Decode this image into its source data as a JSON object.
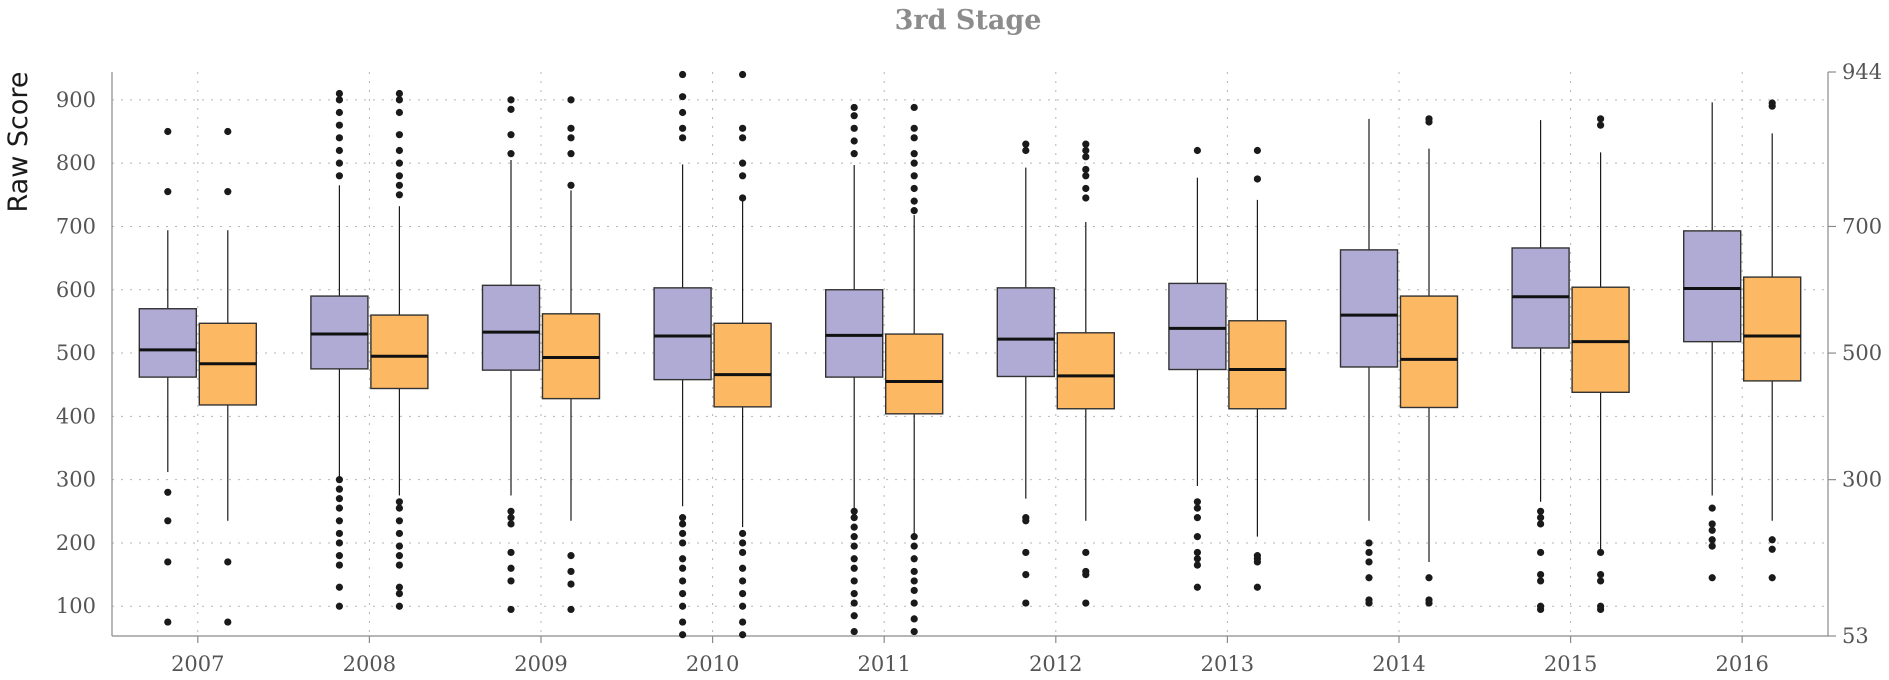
{
  "chart_data": {
    "type": "box",
    "title": "3rd Stage",
    "ylabel": "Raw Score",
    "ylim": [
      53,
      944
    ],
    "yticks": [
      100,
      200,
      300,
      400,
      500,
      600,
      700,
      800,
      900
    ],
    "right_axis_ticks": [
      {
        "value": 53,
        "label": "53"
      },
      {
        "value": 300,
        "label": "300"
      },
      {
        "value": 500,
        "label": "500"
      },
      {
        "value": 700,
        "label": "700"
      },
      {
        "value": 944,
        "label": "944"
      }
    ],
    "grid": true,
    "categories": [
      "2007",
      "2008",
      "2009",
      "2010",
      "2011",
      "2012",
      "2013",
      "2014",
      "2015",
      "2016"
    ],
    "series": [
      {
        "color": "#b0abd4",
        "boxes": [
          {
            "q1": 462,
            "median": 505,
            "q3": 570,
            "whisker_low": 312,
            "whisker_high": 694,
            "outliers": [
              75,
              170,
              235,
              280,
              755,
              850
            ]
          },
          {
            "q1": 475,
            "median": 530,
            "q3": 590,
            "whisker_low": 305,
            "whisker_high": 765,
            "outliers": [
              100,
              130,
              165,
              180,
              200,
              215,
              235,
              255,
              270,
              285,
              300,
              780,
              800,
              820,
              840,
              860,
              880,
              900,
              910
            ]
          },
          {
            "q1": 473,
            "median": 533,
            "q3": 607,
            "whisker_low": 275,
            "whisker_high": 805,
            "outliers": [
              95,
              140,
              160,
              185,
              230,
              240,
              250,
              815,
              845,
              885,
              900
            ]
          },
          {
            "q1": 458,
            "median": 527,
            "q3": 603,
            "whisker_low": 258,
            "whisker_high": 798,
            "outliers": [
              55,
              75,
              100,
              120,
              140,
              160,
              175,
              200,
              215,
              230,
              240,
              840,
              855,
              880,
              905,
              940
            ]
          },
          {
            "q1": 462,
            "median": 528,
            "q3": 600,
            "whisker_low": 255,
            "whisker_high": 797,
            "outliers": [
              60,
              85,
              105,
              120,
              140,
              160,
              175,
              195,
              210,
              225,
              240,
              250,
              815,
              835,
              855,
              875,
              888
            ]
          },
          {
            "q1": 463,
            "median": 522,
            "q3": 603,
            "whisker_low": 270,
            "whisker_high": 793,
            "outliers": [
              105,
              150,
              185,
              235,
              240,
              820,
              830
            ]
          },
          {
            "q1": 474,
            "median": 539,
            "q3": 610,
            "whisker_low": 290,
            "whisker_high": 777,
            "outliers": [
              130,
              165,
              175,
              185,
              210,
              240,
              255,
              265,
              820
            ]
          },
          {
            "q1": 478,
            "median": 560,
            "q3": 663,
            "whisker_low": 235,
            "whisker_high": 870,
            "outliers": [
              105,
              110,
              145,
              170,
              185,
              200
            ]
          },
          {
            "q1": 508,
            "median": 589,
            "q3": 666,
            "whisker_low": 265,
            "whisker_high": 868,
            "outliers": [
              95,
              100,
              140,
              150,
              185,
              230,
              240,
              250
            ]
          },
          {
            "q1": 518,
            "median": 602,
            "q3": 693,
            "whisker_low": 275,
            "whisker_high": 896,
            "outliers": [
              145,
              195,
              205,
              220,
              230,
              255
            ]
          }
        ]
      },
      {
        "color": "#fcb862",
        "boxes": [
          {
            "q1": 418,
            "median": 483,
            "q3": 547,
            "whisker_low": 235,
            "whisker_high": 694,
            "outliers": [
              75,
              170,
              755,
              850
            ]
          },
          {
            "q1": 444,
            "median": 495,
            "q3": 560,
            "whisker_low": 275,
            "whisker_high": 732,
            "outliers": [
              100,
              120,
              130,
              165,
              180,
              195,
              215,
              235,
              255,
              265,
              750,
              765,
              780,
              800,
              820,
              845,
              880,
              900,
              910
            ]
          },
          {
            "q1": 428,
            "median": 493,
            "q3": 562,
            "whisker_low": 235,
            "whisker_high": 757,
            "outliers": [
              95,
              135,
              155,
              180,
              765,
              815,
              840,
              855,
              900
            ]
          },
          {
            "q1": 415,
            "median": 466,
            "q3": 547,
            "whisker_low": 225,
            "whisker_high": 742,
            "outliers": [
              55,
              75,
              100,
              120,
              140,
              160,
              185,
              200,
              215,
              745,
              780,
              800,
              840,
              855,
              940
            ]
          },
          {
            "q1": 404,
            "median": 455,
            "q3": 530,
            "whisker_low": 215,
            "whisker_high": 718,
            "outliers": [
              60,
              80,
              105,
              125,
              140,
              155,
              175,
              195,
              210,
              725,
              740,
              760,
              780,
              800,
              815,
              840,
              855,
              888
            ]
          },
          {
            "q1": 412,
            "median": 464,
            "q3": 532,
            "whisker_low": 235,
            "whisker_high": 707,
            "outliers": [
              105,
              150,
              155,
              185,
              745,
              760,
              780,
              790,
              810,
              820,
              830
            ]
          },
          {
            "q1": 412,
            "median": 474,
            "q3": 551,
            "whisker_low": 210,
            "whisker_high": 742,
            "outliers": [
              130,
              170,
              175,
              180,
              775,
              820
            ]
          },
          {
            "q1": 414,
            "median": 490,
            "q3": 590,
            "whisker_low": 170,
            "whisker_high": 823,
            "outliers": [
              105,
              110,
              145,
              865,
              870
            ]
          },
          {
            "q1": 438,
            "median": 518,
            "q3": 604,
            "whisker_low": 190,
            "whisker_high": 817,
            "outliers": [
              95,
              100,
              140,
              150,
              185,
              860,
              870
            ]
          },
          {
            "q1": 456,
            "median": 527,
            "q3": 620,
            "whisker_low": 235,
            "whisker_high": 847,
            "outliers": [
              145,
              190,
              205,
              890,
              895
            ]
          }
        ]
      }
    ]
  }
}
